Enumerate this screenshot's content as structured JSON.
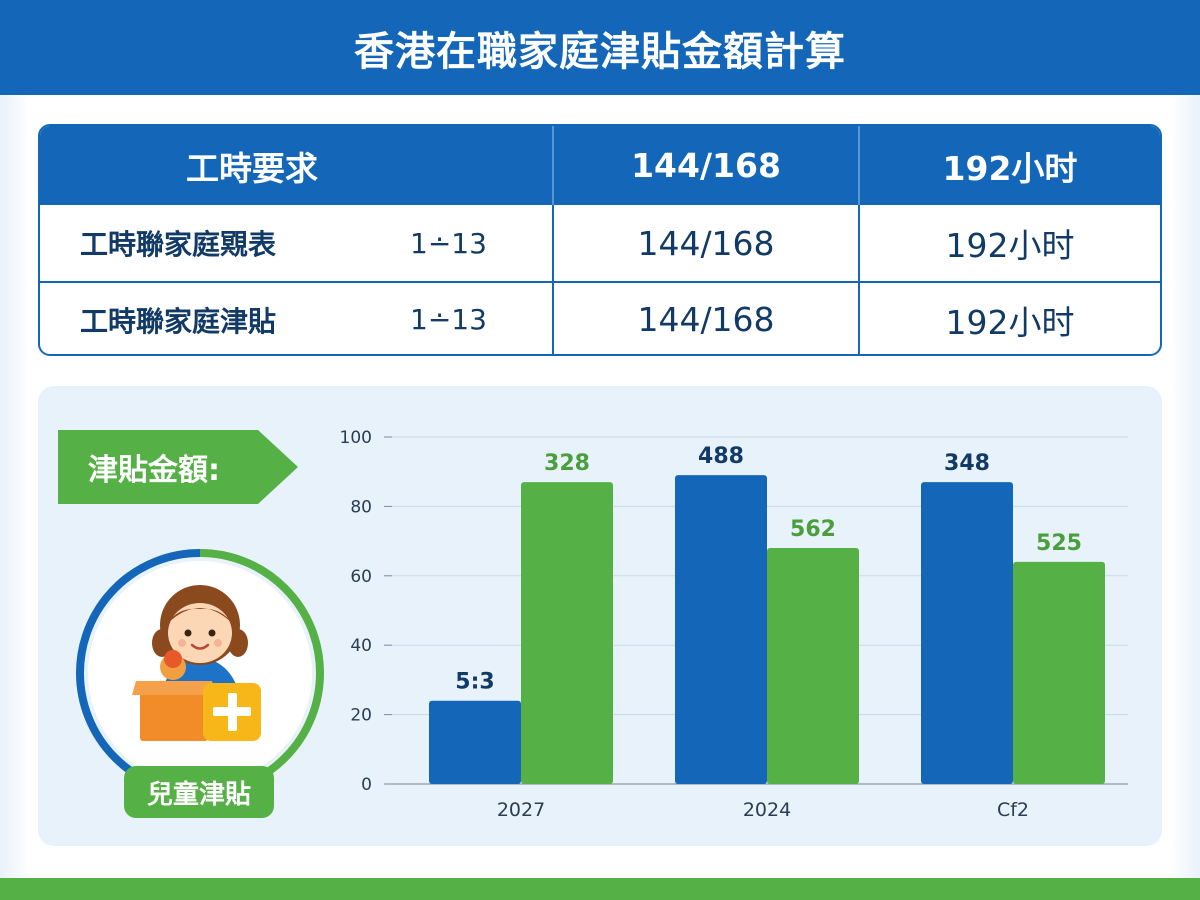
{
  "header": {
    "title": "香港在職家庭津貼金額計算"
  },
  "table": {
    "header": [
      "工時要求",
      "144/168",
      "192小时"
    ],
    "rows": [
      {
        "label": "工時聯家庭覭表",
        "range": "1∸13",
        "col2": "144/168",
        "col3": "192小时"
      },
      {
        "label": "工時聯家庭津貼",
        "range": "1∸13",
        "col2": "144/168",
        "col3": "192小时"
      }
    ]
  },
  "panel": {
    "arrow_label": "津貼金額:",
    "child_tag": "兒童津貼",
    "icon": "child-with-box-icon"
  },
  "colors": {
    "blue": "#1467b8",
    "green": "#55b046",
    "light_bg": "#e8f2fb"
  },
  "chart_data": {
    "type": "bar",
    "categories": [
      "2027",
      "2024",
      "Cf2"
    ],
    "series": [
      {
        "values": [
          24,
          89,
          87
        ],
        "labels": [
          "5:3",
          "488",
          "348"
        ]
      },
      {
        "values": [
          87,
          68,
          64
        ],
        "labels": [
          "328",
          "562",
          "525"
        ]
      }
    ],
    "ylim": [
      0,
      100
    ],
    "yticks": [
      0,
      20,
      40,
      60,
      80,
      100
    ],
    "grid": true,
    "series_colors": [
      "#1467b8",
      "#55b046"
    ],
    "label_colors": [
      "#123a66",
      "#4a9e3c"
    ]
  }
}
